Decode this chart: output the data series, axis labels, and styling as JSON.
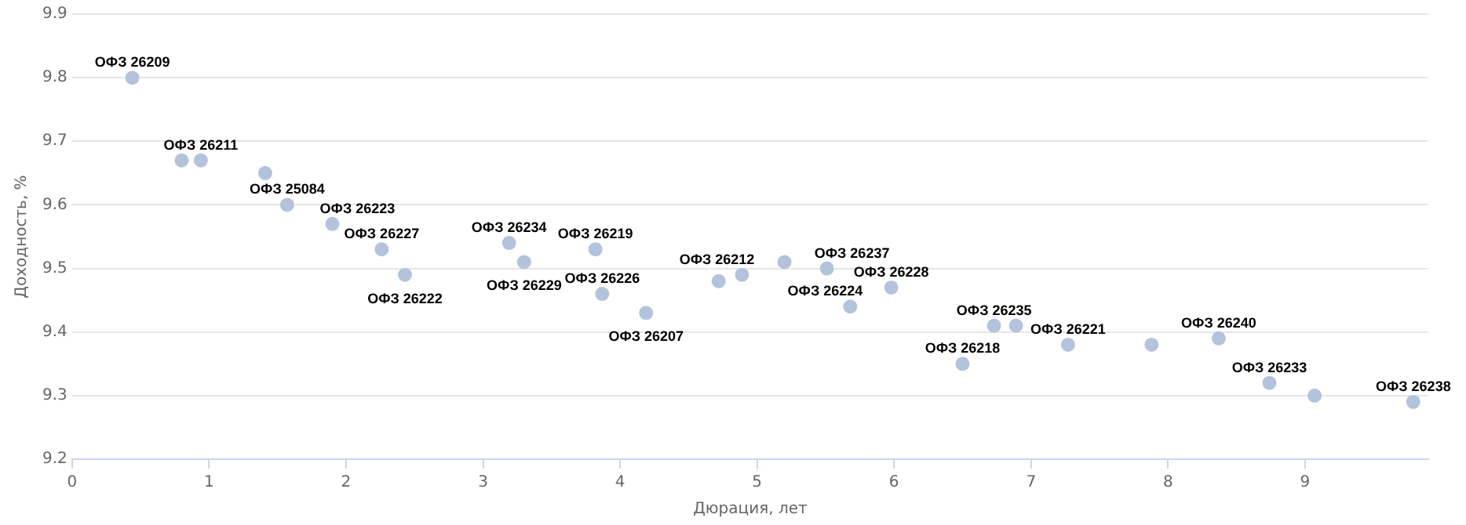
{
  "chart_data": {
    "type": "scatter",
    "xlabel": "Дюрация, лет",
    "ylabel": "Доходность, %",
    "x": [
      0.44,
      0.8,
      0.94,
      1.41,
      1.57,
      1.9,
      2.26,
      2.43,
      3.19,
      3.3,
      3.82,
      3.87,
      4.19,
      4.72,
      4.89,
      5.2,
      5.51,
      5.68,
      5.98,
      6.5,
      6.73,
      6.89,
      7.27,
      7.88,
      8.37,
      8.74,
      9.07,
      9.79
    ],
    "series": [
      {
        "color": "#b3c3dc",
        "values": [
          9.8,
          9.67,
          9.67,
          9.65,
          9.6,
          9.57,
          9.53,
          9.49,
          9.54,
          9.51,
          9.53,
          9.46,
          9.43,
          9.48,
          9.49,
          9.51,
          9.5,
          9.44,
          9.47,
          9.35,
          9.41,
          9.41,
          9.38,
          9.38,
          9.39,
          9.32,
          9.3,
          9.29
        ]
      }
    ],
    "annotations": [
      {
        "text": "ОФЗ 26209",
        "x": 0.44,
        "y": 9.8
      },
      {
        "text": "ОФЗ 26211",
        "x": 0.94,
        "y": 9.67
      },
      {
        "text": "ОФЗ 25084",
        "x": 1.57,
        "y": 9.6
      },
      {
        "text": "ОФЗ 26223",
        "x": 1.9,
        "y": 9.57
      },
      {
        "text": "ОФЗ 26227",
        "x": 2.26,
        "y": 9.53
      },
      {
        "text": "ОФЗ 26222",
        "x": 2.43,
        "y": 9.49
      },
      {
        "text": "ОФЗ 26234",
        "x": 3.19,
        "y": 9.54
      },
      {
        "text": "ОФЗ 26229",
        "x": 3.3,
        "y": 9.51
      },
      {
        "text": "ОФЗ 26219",
        "x": 3.82,
        "y": 9.53
      },
      {
        "text": "ОФЗ 26226",
        "x": 3.87,
        "y": 9.46
      },
      {
        "text": "ОФЗ 26207",
        "x": 4.19,
        "y": 9.43
      },
      {
        "text": "ОФЗ 26212",
        "x": 4.89,
        "y": 9.49
      },
      {
        "text": "ОФЗ 26237",
        "x": 5.51,
        "y": 9.5
      },
      {
        "text": "ОФЗ 26224",
        "x": 5.68,
        "y": 9.44
      },
      {
        "text": "ОФЗ 26228",
        "x": 5.98,
        "y": 9.47
      },
      {
        "text": "ОФЗ 26218",
        "x": 6.5,
        "y": 9.35
      },
      {
        "text": "ОФЗ 26235",
        "x": 6.73,
        "y": 9.41
      },
      {
        "text": "ОФЗ 26221",
        "x": 7.27,
        "y": 9.38
      },
      {
        "text": "ОФЗ 26240",
        "x": 8.37,
        "y": 9.39
      },
      {
        "text": "ОФЗ 26233",
        "x": 8.74,
        "y": 9.32
      },
      {
        "text": "ОФЗ 26238",
        "x": 9.79,
        "y": 9.29
      }
    ],
    "xlim": [
      0,
      9.9
    ],
    "xticks": [
      0,
      1,
      2,
      3,
      4,
      5,
      6,
      7,
      8,
      9
    ],
    "ylim": [
      9.2,
      9.9
    ],
    "yticks": [
      9.2,
      9.3,
      9.4,
      9.5,
      9.6,
      9.7,
      9.8,
      9.9
    ],
    "grid": "y",
    "legend": false,
    "marker": "circle"
  }
}
